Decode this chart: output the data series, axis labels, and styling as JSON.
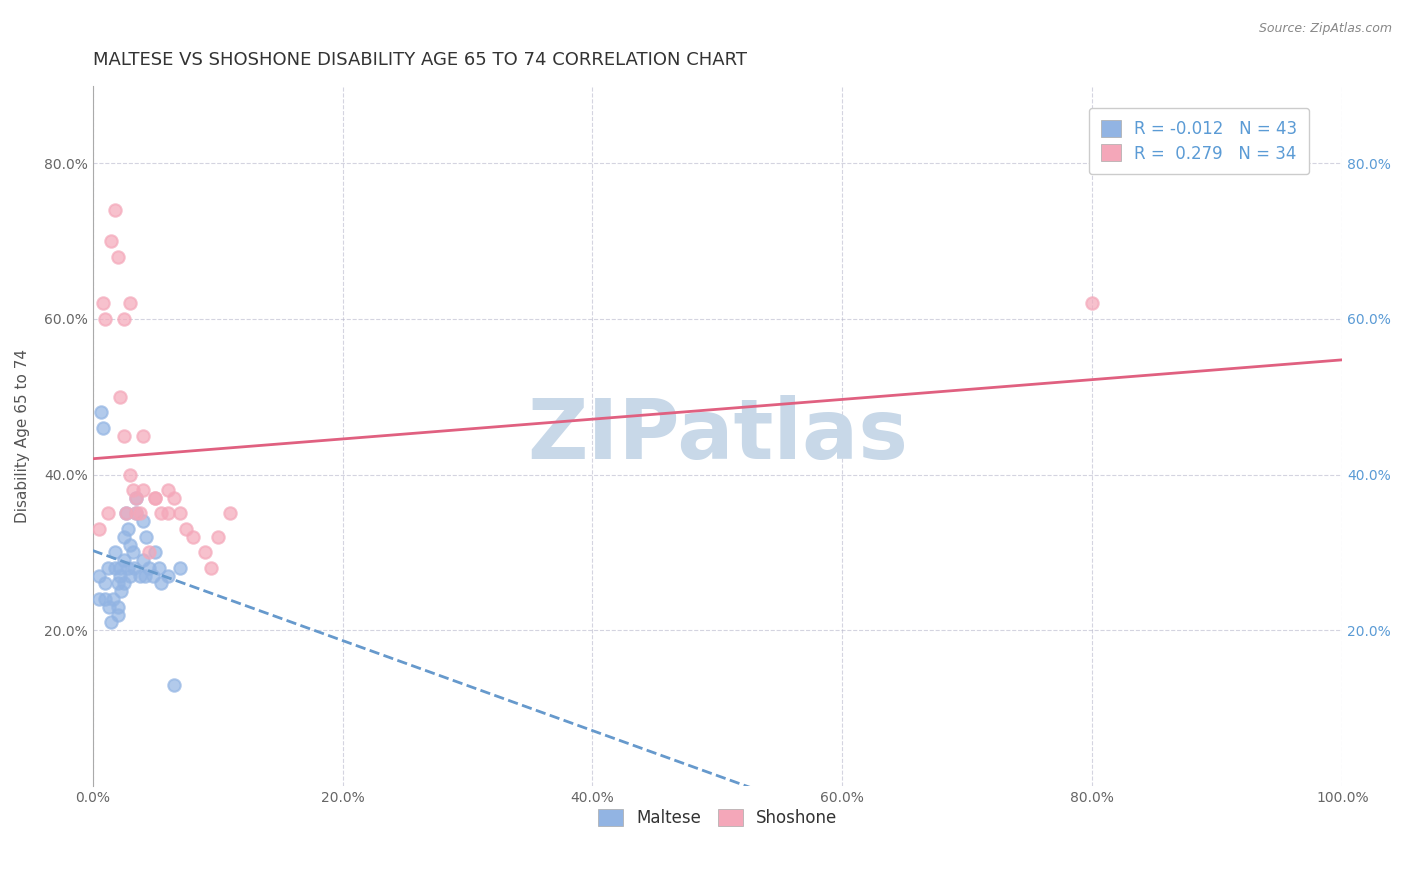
{
  "title": "MALTESE VS SHOSHONE DISABILITY AGE 65 TO 74 CORRELATION CHART",
  "source_text": "Source: ZipAtlas.com",
  "xlabel": "",
  "ylabel": "Disability Age 65 to 74",
  "xlim": [
    0.0,
    1.0
  ],
  "ylim": [
    0.0,
    0.9
  ],
  "xtick_labels": [
    "0.0%",
    "20.0%",
    "40.0%",
    "60.0%",
    "80.0%",
    "100.0%"
  ],
  "xtick_values": [
    0.0,
    0.2,
    0.4,
    0.6,
    0.8,
    1.0
  ],
  "ytick_labels": [
    "20.0%",
    "40.0%",
    "60.0%",
    "80.0%"
  ],
  "ytick_values": [
    0.2,
    0.4,
    0.6,
    0.8
  ],
  "maltese_color": "#92b4e3",
  "shoshone_color": "#f4a7b9",
  "maltese_line_color": "#6699cc",
  "shoshone_line_color": "#e06080",
  "legend_maltese_r": "-0.012",
  "legend_maltese_n": "43",
  "legend_shoshone_r": "0.279",
  "legend_shoshone_n": "34",
  "maltese_scatter_x": [
    0.005,
    0.005,
    0.007,
    0.008,
    0.01,
    0.01,
    0.012,
    0.013,
    0.015,
    0.016,
    0.018,
    0.018,
    0.02,
    0.02,
    0.02,
    0.022,
    0.022,
    0.023,
    0.025,
    0.025,
    0.025,
    0.027,
    0.028,
    0.028,
    0.03,
    0.03,
    0.032,
    0.033,
    0.035,
    0.035,
    0.038,
    0.04,
    0.04,
    0.042,
    0.043,
    0.045,
    0.048,
    0.05,
    0.053,
    0.055,
    0.06,
    0.065,
    0.07
  ],
  "maltese_scatter_y": [
    0.27,
    0.24,
    0.48,
    0.46,
    0.26,
    0.24,
    0.28,
    0.23,
    0.21,
    0.24,
    0.3,
    0.28,
    0.26,
    0.23,
    0.22,
    0.28,
    0.27,
    0.25,
    0.32,
    0.29,
    0.26,
    0.35,
    0.33,
    0.28,
    0.31,
    0.27,
    0.3,
    0.28,
    0.37,
    0.35,
    0.27,
    0.34,
    0.29,
    0.27,
    0.32,
    0.28,
    0.27,
    0.3,
    0.28,
    0.26,
    0.27,
    0.13,
    0.28
  ],
  "shoshone_scatter_x": [
    0.005,
    0.008,
    0.01,
    0.012,
    0.015,
    0.018,
    0.02,
    0.022,
    0.025,
    0.027,
    0.03,
    0.032,
    0.035,
    0.038,
    0.04,
    0.045,
    0.05,
    0.055,
    0.06,
    0.065,
    0.07,
    0.075,
    0.08,
    0.09,
    0.095,
    0.1,
    0.11,
    0.025,
    0.03,
    0.035,
    0.04,
    0.05,
    0.06,
    0.8
  ],
  "shoshone_scatter_y": [
    0.33,
    0.62,
    0.6,
    0.35,
    0.7,
    0.74,
    0.68,
    0.5,
    0.45,
    0.35,
    0.4,
    0.38,
    0.37,
    0.35,
    0.45,
    0.3,
    0.37,
    0.35,
    0.38,
    0.37,
    0.35,
    0.33,
    0.32,
    0.3,
    0.28,
    0.32,
    0.35,
    0.6,
    0.62,
    0.35,
    0.38,
    0.37,
    0.35,
    0.62
  ],
  "background_color": "#ffffff",
  "grid_color": "#b8b8cc",
  "title_fontsize": 13,
  "axis_label_fontsize": 11,
  "tick_fontsize": 10,
  "legend_fontsize": 12,
  "watermark_text": "ZIPatlas",
  "watermark_color": "#c8d8e8",
  "watermark_fontsize": 60,
  "right_tick_color": "#5b9bd5"
}
